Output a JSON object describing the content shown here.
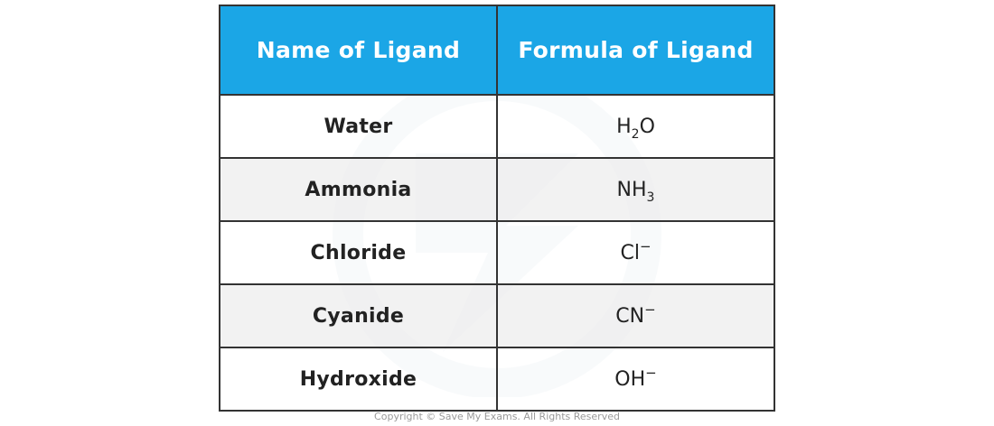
{
  "table": {
    "headers": {
      "name": "Name of Ligand",
      "formula": "Formula of Ligand"
    },
    "rows": [
      {
        "name": "Water",
        "formula": {
          "base": "H",
          "sub": "2",
          "after": "O",
          "sup": ""
        }
      },
      {
        "name": "Ammonia",
        "formula": {
          "base": "NH",
          "sub": "3",
          "after": "",
          "sup": ""
        }
      },
      {
        "name": "Chloride",
        "formula": {
          "base": "Cl",
          "sub": "",
          "after": "",
          "sup": "−"
        }
      },
      {
        "name": "Cyanide",
        "formula": {
          "base": "CN",
          "sub": "",
          "after": "",
          "sup": "−"
        }
      },
      {
        "name": "Hydroxide",
        "formula": {
          "base": "OH",
          "sub": "",
          "after": "",
          "sup": "−"
        }
      }
    ]
  },
  "footer": {
    "copyright": "Copyright © Save My Exams. All Rights Reserved"
  },
  "colors": {
    "header_bg": "#1ba6e6",
    "header_text": "#ffffff",
    "border": "#333333",
    "alt_row_bg": "#f0f0f0"
  }
}
